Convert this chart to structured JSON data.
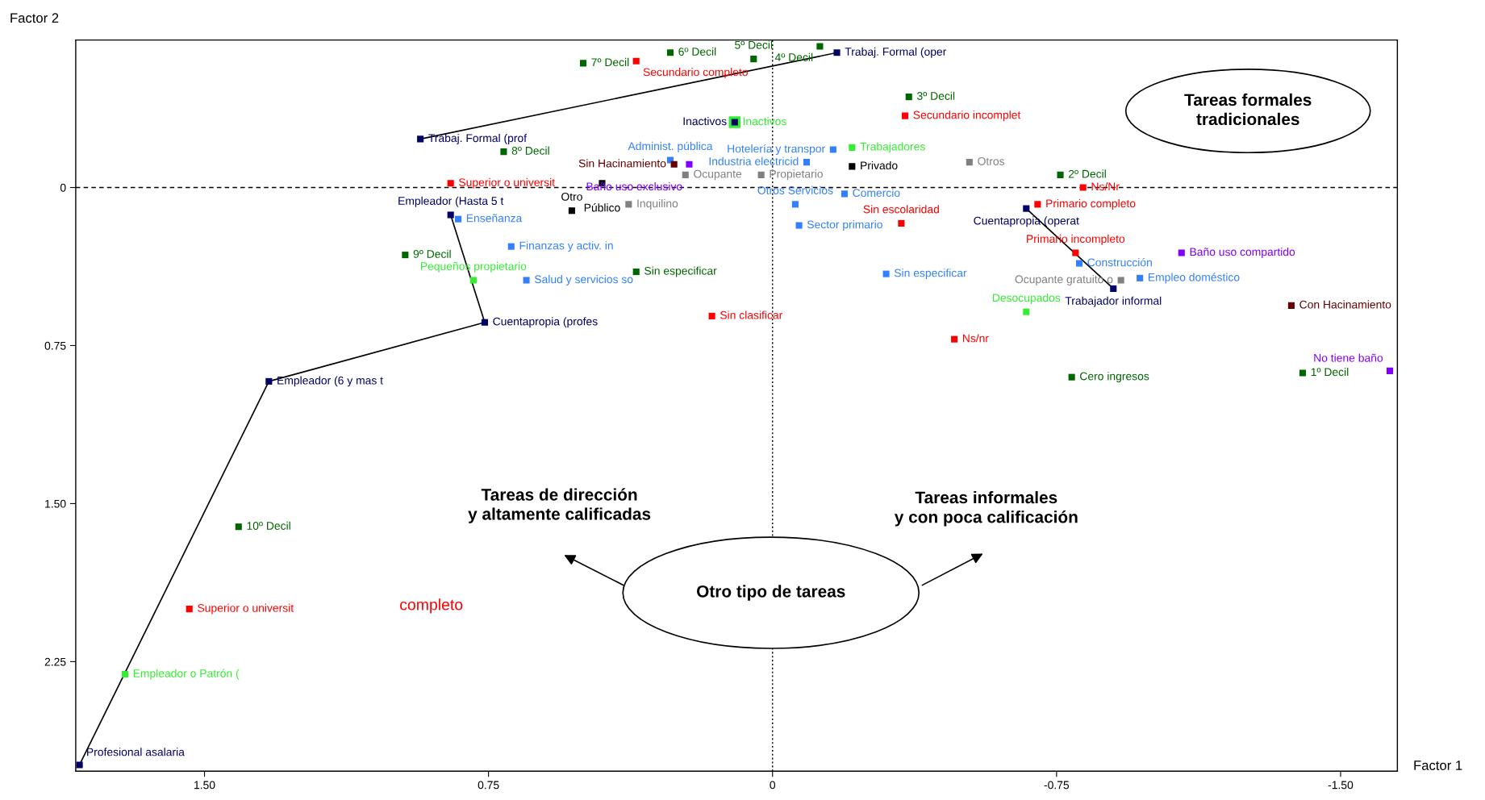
{
  "chart_data": {
    "type": "scatter",
    "xlabel": "Factor 1",
    "ylabel": "Factor 2",
    "xlim": [
      1.84,
      -1.65
    ],
    "ylim": [
      2.77,
      -0.7
    ],
    "xticks": [
      {
        "value": 1.5,
        "label": "1.50"
      },
      0.75,
      0,
      -0.75,
      {
        "value": -1.5,
        "label": "-1.50"
      }
    ],
    "yticks": [
      0,
      0.75,
      {
        "value": 1.5,
        "label": "1.50"
      },
      2.25
    ],
    "marker": "square",
    "grid": false,
    "ref_lines": [
      {
        "axis": "x",
        "value": 0,
        "color": "#000000",
        "line_style": "dotted"
      },
      {
        "axis": "y",
        "value": 0,
        "color": "#000000",
        "line_style": "dashed"
      }
    ],
    "annotations": [
      "Tareas formales\ntradicionales",
      "Otro tipo de tareas",
      "Tareas de dirección\ny altamente calificadas",
      "Tareas informales\ny con poca calificación",
      "completo"
    ],
    "series": [
      {
        "type": "line",
        "marker": "none",
        "color": "#000000",
        "x": [
          0.93,
          -0.17
        ],
        "values": [
          -0.23,
          -0.64
        ]
      },
      {
        "type": "line",
        "marker": "none",
        "color": "#000000",
        "x": [
          0.85,
          0.76,
          1.33,
          1.83
        ],
        "values": [
          0.13,
          0.64,
          0.92,
          2.74
        ]
      },
      {
        "type": "line",
        "marker": "none",
        "color": "#000000",
        "x": [
          -0.67,
          -0.9
        ],
        "values": [
          0.1,
          0.48
        ]
      },
      {
        "name": "Inactivos",
        "color": "#33ee33",
        "x": [
          0.1
        ],
        "values": [
          -0.31
        ]
      },
      {
        "name": "Trabaj. Formal (prof",
        "color": "#000066",
        "x": [
          0.93
        ],
        "values": [
          -0.23
        ]
      },
      {
        "name": "Trabaj. Formal (oper",
        "color": "#000066",
        "x": [
          -0.17
        ],
        "values": [
          -0.64
        ]
      },
      {
        "name": "Empleador (Hasta 5 t",
        "color": "#000066",
        "x": [
          0.85
        ],
        "values": [
          0.13
        ]
      },
      {
        "name": "Cuentapropia (profes",
        "color": "#000066",
        "x": [
          0.76
        ],
        "values": [
          0.64
        ]
      },
      {
        "name": "Empleador (6 y mas t",
        "color": "#000066",
        "x": [
          1.33
        ],
        "values": [
          0.92
        ]
      },
      {
        "name": "Profesional asalaria",
        "color": "#000066",
        "x": [
          1.83
        ],
        "values": [
          2.74
        ]
      },
      {
        "name": "Cuentapropia (operat",
        "color": "#000066",
        "x": [
          -0.67
        ],
        "values": [
          0.1
        ]
      },
      {
        "name": "Trabajador informal",
        "color": "#000066",
        "x": [
          -0.9
        ],
        "values": [
          0.48
        ]
      },
      {
        "name": "Inactivos",
        "color": "#000066",
        "x": [
          0.1
        ],
        "values": [
          -0.31
        ]
      },
      {
        "name": "4º Decil",
        "color": "#006600",
        "x": [
          -0.125
        ],
        "values": [
          -0.67
        ]
      },
      {
        "name": "6º Decil",
        "color": "#006600",
        "x": [
          0.27
        ],
        "values": [
          -0.64
        ]
      },
      {
        "name": "7º Decil",
        "color": "#006600",
        "x": [
          0.5
        ],
        "values": [
          -0.59
        ]
      },
      {
        "name": "5º Decil",
        "color": "#006600",
        "x": [
          0.05
        ],
        "values": [
          -0.61
        ]
      },
      {
        "name": "3º Decil",
        "color": "#006600",
        "x": [
          -0.36
        ],
        "values": [
          -0.43
        ]
      },
      {
        "name": "8º Decil",
        "color": "#006600",
        "x": [
          0.71
        ],
        "values": [
          -0.17
        ]
      },
      {
        "name": "2º Decil",
        "color": "#006600",
        "x": [
          -0.76
        ],
        "values": [
          -0.06
        ]
      },
      {
        "name": "9º Decil",
        "color": "#006600",
        "x": [
          0.97
        ],
        "values": [
          0.32
        ]
      },
      {
        "name": "Sin especificar",
        "color": "#006600",
        "x": [
          0.36
        ],
        "values": [
          0.4
        ]
      },
      {
        "name": "10º Decil",
        "color": "#006600",
        "x": [
          1.41
        ],
        "values": [
          1.61
        ]
      },
      {
        "name": "Cero ingresos",
        "color": "#006600",
        "x": [
          -0.79
        ],
        "values": [
          0.9
        ]
      },
      {
        "name": "1º Decil",
        "color": "#006600",
        "x": [
          -1.4
        ],
        "values": [
          0.88
        ]
      },
      {
        "name": "Secundario completo",
        "color": "#ff0000",
        "x": [
          0.36
        ],
        "values": [
          -0.6
        ]
      },
      {
        "name": "Secundario incomplet",
        "color": "#ff0000",
        "x": [
          -0.35
        ],
        "values": [
          -0.34
        ]
      },
      {
        "name": "Superior o universit",
        "color": "#ff0000",
        "x": [
          0.85
        ],
        "values": [
          -0.02
        ]
      },
      {
        "name": "Ns/Nr",
        "color": "#ff0000",
        "x": [
          -0.82
        ],
        "values": [
          0.0
        ]
      },
      {
        "name": "Primario completo",
        "color": "#ff0000",
        "x": [
          -0.7
        ],
        "values": [
          0.08
        ]
      },
      {
        "name": "Primario incompleto",
        "color": "#ff0000",
        "x": [
          -0.8
        ],
        "values": [
          0.31
        ]
      },
      {
        "name": "Sin escolaridad",
        "color": "#ff0000",
        "x": [
          -0.34
        ],
        "values": [
          0.17
        ]
      },
      {
        "name": "Sin clasificar",
        "color": "#ff0000",
        "x": [
          0.16
        ],
        "values": [
          0.61
        ]
      },
      {
        "name": "Ns/nr",
        "color": "#ff0000",
        "x": [
          -0.48
        ],
        "values": [
          0.72
        ]
      },
      {
        "name": "Superior o universit",
        "color": "#ff0000",
        "x": [
          1.54
        ],
        "values": [
          2.0
        ]
      },
      {
        "name": "Administ. pública",
        "color": "#3380ff",
        "x": [
          0.27
        ],
        "values": [
          -0.13
        ]
      },
      {
        "name": "Enseñanza",
        "color": "#3380ff",
        "x": [
          0.83
        ],
        "values": [
          0.15
        ]
      },
      {
        "name": "Finanzas y activ. in",
        "color": "#3380ff",
        "x": [
          0.69
        ],
        "values": [
          0.28
        ]
      },
      {
        "name": "Salud y servicios so",
        "color": "#3380ff",
        "x": [
          0.65
        ],
        "values": [
          0.44
        ]
      },
      {
        "name": "Hotelería y transpor",
        "color": "#3380ff",
        "x": [
          -0.16
        ],
        "values": [
          -0.18
        ]
      },
      {
        "name": "Industria electricid",
        "color": "#3380ff",
        "x": [
          -0.09
        ],
        "values": [
          -0.12
        ]
      },
      {
        "name": "Comercio",
        "color": "#3380ff",
        "x": [
          -0.19
        ],
        "values": [
          0.03
        ]
      },
      {
        "name": "Otros Servicios",
        "color": "#3380ff",
        "x": [
          -0.06
        ],
        "values": [
          0.08
        ]
      },
      {
        "name": "Sector primario",
        "color": "#3380ff",
        "x": [
          -0.07
        ],
        "values": [
          0.18
        ]
      },
      {
        "name": "Sin especificar",
        "color": "#3380ff",
        "x": [
          -0.3
        ],
        "values": [
          0.41
        ]
      },
      {
        "name": "Construcción",
        "color": "#3380ff",
        "x": [
          -0.81
        ],
        "values": [
          0.36
        ]
      },
      {
        "name": "Empleo doméstico",
        "color": "#3380ff",
        "x": [
          -0.97
        ],
        "values": [
          0.43
        ]
      },
      {
        "name": "Otros",
        "color": "#808080",
        "x": [
          -0.52
        ],
        "values": [
          -0.12
        ]
      },
      {
        "name": "Ocupante",
        "color": "#808080",
        "x": [
          0.23
        ],
        "values": [
          -0.06
        ]
      },
      {
        "name": "Propietario",
        "color": "#808080",
        "x": [
          0.03
        ],
        "values": [
          -0.06
        ]
      },
      {
        "name": "Inquilino",
        "color": "#808080",
        "x": [
          0.38
        ],
        "values": [
          0.08
        ]
      },
      {
        "name": "Ocupante gratuito o",
        "color": "#808080",
        "x": [
          -0.92
        ],
        "values": [
          0.44
        ]
      },
      {
        "name": "Sin Hacinamiento",
        "color": "#660000",
        "x": [
          0.26
        ],
        "values": [
          -0.11
        ]
      },
      {
        "name": "Con Hacinamiento",
        "color": "#660000",
        "x": [
          -1.37
        ],
        "values": [
          0.56
        ]
      },
      {
        "name": "Baño uso exclusivo",
        "color": "#8000ff",
        "x": [
          0.22
        ],
        "values": [
          -0.11
        ]
      },
      {
        "name": "Baño uso compartido",
        "color": "#8000ff",
        "x": [
          -1.08
        ],
        "values": [
          0.31
        ]
      },
      {
        "name": "No tiene baño",
        "color": "#8000ff",
        "x": [
          -1.63
        ],
        "values": [
          0.87
        ]
      },
      {
        "name": "Público",
        "color": "#000000",
        "x": [
          0.45
        ],
        "values": [
          -0.02
        ]
      },
      {
        "name": "Otro",
        "color": "#000000",
        "x": [
          0.53
        ],
        "values": [
          0.11
        ]
      },
      {
        "name": "Privado",
        "color": "#000000",
        "x": [
          -0.21
        ],
        "values": [
          -0.1
        ]
      },
      {
        "name": "Trabajadores",
        "color": "#33ee33",
        "x": [
          -0.21
        ],
        "values": [
          -0.19
        ]
      },
      {
        "name": "Pequeños propietario",
        "color": "#33ee33",
        "x": [
          0.79
        ],
        "values": [
          0.44
        ]
      },
      {
        "name": "Empleador o Patrón (",
        "color": "#33ee33",
        "x": [
          1.71
        ],
        "values": [
          2.31
        ]
      },
      {
        "name": "Desocupados",
        "color": "#33ee33",
        "x": [
          -0.67
        ],
        "values": [
          0.59
        ]
      }
    ]
  }
}
